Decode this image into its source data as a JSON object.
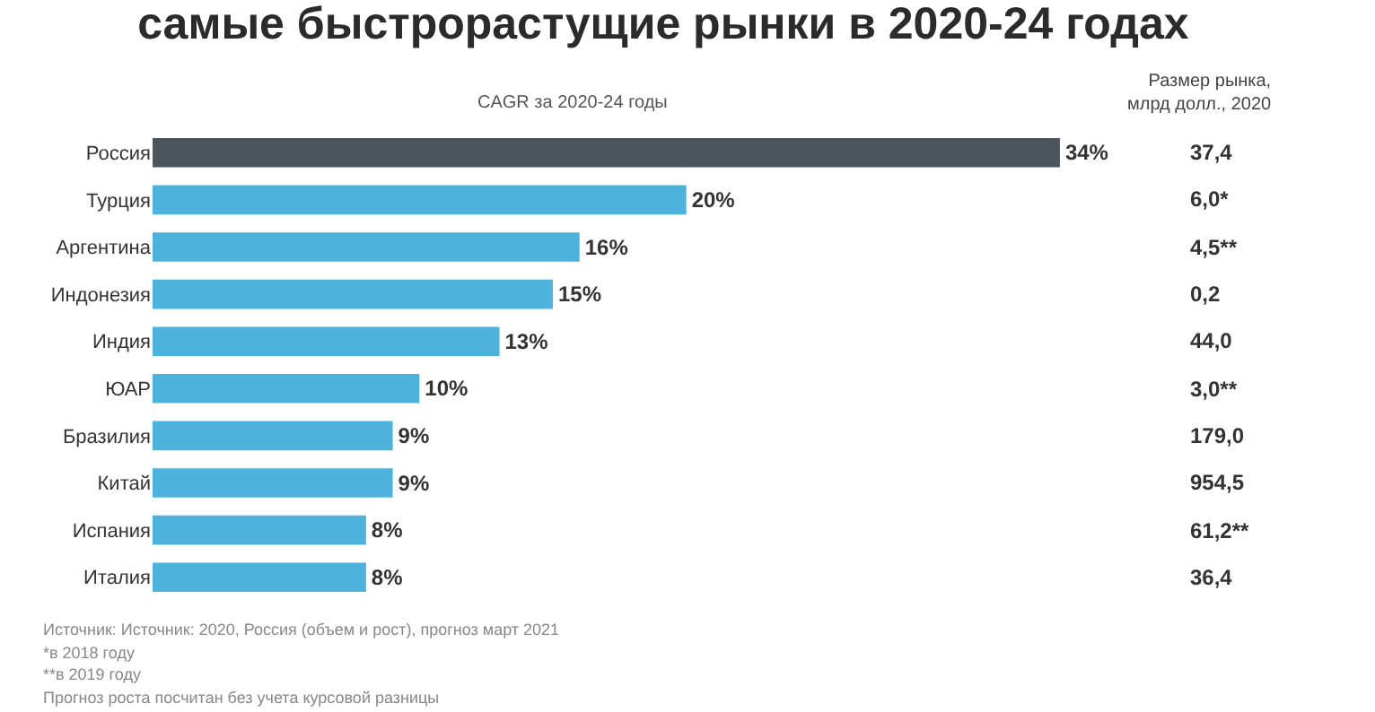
{
  "chart_data": {
    "type": "bar",
    "orientation": "horizontal",
    "title": "самые быстрорастущие рынки в 2020-24 годах",
    "subtitle": "CAGR за 2020-24 годы",
    "categories": [
      "Россия",
      "Турция",
      "Аргентина",
      "Индонезия",
      "Индия",
      "ЮАР",
      "Бразилия",
      "Китай",
      "Испания",
      "Италия"
    ],
    "values": [
      34,
      20,
      16,
      15,
      13,
      10,
      9,
      9,
      8,
      8
    ],
    "colors": [
      "#4b555e",
      "#4db3dc",
      "#4db3dc",
      "#4db3dc",
      "#4db3dc",
      "#4db3dc",
      "#4db3dc",
      "#4db3dc",
      "#4db3dc",
      "#4db3dc"
    ],
    "value_labels": [
      "34%",
      "20%",
      "16%",
      "15%",
      "13%",
      "10%",
      "9%",
      "9%",
      "8%",
      "8%"
    ],
    "tick_labels": "y",
    "legend": false,
    "annotations": [
      "Размер рынка,\nмлрд долл., 2020",
      "37,4",
      "6,0*",
      "4,5**",
      "0,2",
      "44,0",
      "3,0**",
      "179,0",
      "954,5",
      "61,2**",
      "36,4",
      "Источник: Источник: 2020, Россия (объем и рост), прогноз март 2021",
      "*в 2018 году",
      "**в 2019 году",
      "Прогноз роста посчитан без учета курсовой разницы"
    ]
  }
}
